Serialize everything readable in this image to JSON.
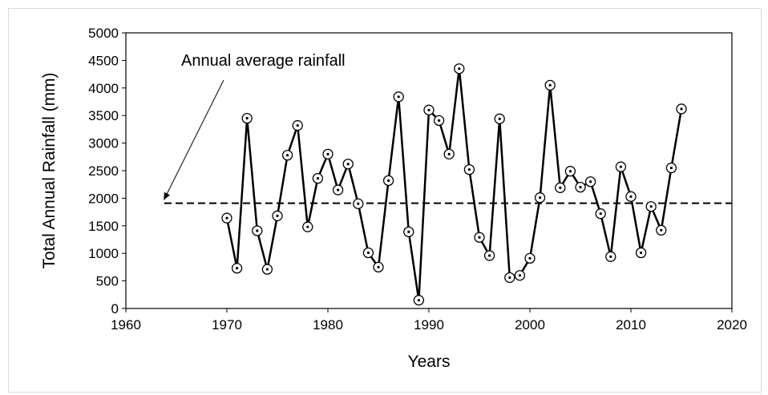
{
  "chart_data": {
    "type": "line",
    "xlabel": "Years",
    "ylabel": "Total Annual Rainfall (mm)",
    "xlim": [
      1960,
      2020
    ],
    "ylim": [
      0,
      5000
    ],
    "xticks": [
      1960,
      1970,
      1980,
      1990,
      2000,
      2010,
      2020
    ],
    "yticks": [
      0,
      500,
      1000,
      1500,
      2000,
      2500,
      3000,
      3500,
      4000,
      4500,
      5000
    ],
    "grid": false,
    "legend": "none",
    "series": [
      {
        "marker": "open-circle",
        "color": "#000000",
        "x": [
          1970,
          1971,
          1972,
          1973,
          1974,
          1975,
          1976,
          1977,
          1978,
          1979,
          1980,
          1981,
          1982,
          1983,
          1984,
          1985,
          1986,
          1987,
          1988,
          1989,
          1990,
          1991,
          1992,
          1993,
          1994,
          1995,
          1996,
          1997,
          1998,
          1999,
          2000,
          2001,
          2002,
          2003,
          2004,
          2005,
          2006,
          2007,
          2008,
          2009,
          2010,
          2011,
          2012,
          2013,
          2014,
          2015
        ],
        "y": [
          1640,
          730,
          3450,
          1410,
          710,
          1680,
          2780,
          3320,
          1480,
          2360,
          2800,
          2150,
          2620,
          1900,
          1010,
          750,
          2320,
          3840,
          1390,
          150,
          3600,
          3410,
          2800,
          4350,
          2520,
          1290,
          960,
          3440,
          560,
          600,
          910,
          2010,
          4050,
          2190,
          2490,
          2200,
          2300,
          1720,
          940,
          2570,
          2030,
          1010,
          1850,
          1420,
          2550,
          3620
        ]
      }
    ],
    "reference_line": {
      "y": 1910,
      "style": "dashed"
    },
    "annotation": {
      "text": "Annual average rainfall",
      "points_to": [
        1964,
        1910
      ]
    }
  }
}
